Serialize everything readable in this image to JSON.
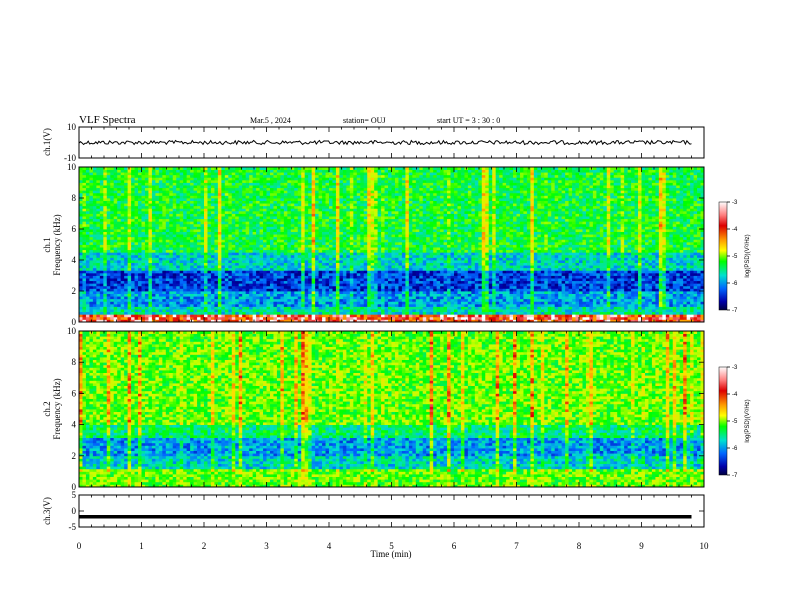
{
  "header": {
    "title": "VLF Spectra",
    "date": "Mar.5 , 2024",
    "station": "station= OUJ",
    "start": "start UT = 3 : 30 : 0"
  },
  "chart_data": {
    "type": "heatmap",
    "xlabel": "Time (min)",
    "xlim": [
      0,
      10
    ],
    "x_ticks": [
      "0",
      "1",
      "2",
      "3",
      "4",
      "5",
      "6",
      "7",
      "8",
      "9",
      "10"
    ],
    "panels": [
      {
        "id": "ch1v",
        "type": "line",
        "ylabel": "ch.1(V)",
        "ylim": [
          -10,
          10
        ],
        "y_ticks": [
          "10",
          "-10"
        ],
        "level": 0
      },
      {
        "id": "ch1spec",
        "type": "heatmap",
        "ylabel_top": "ch.1",
        "ylabel": "Frequency (kHz)",
        "ylim": [
          0,
          10
        ],
        "y_ticks": [
          "0",
          "2",
          "4",
          "6",
          "8",
          "10"
        ],
        "colorbar": {
          "label": "log(PSD)(V²/Hz)",
          "range": [
            -7,
            -3
          ],
          "ticks": [
            "-3",
            "-4",
            "-5",
            "-6",
            "-7"
          ]
        }
      },
      {
        "id": "ch2spec",
        "type": "heatmap",
        "ylabel_top": "ch.2",
        "ylabel": "Frequency (kHz)",
        "ylim": [
          0,
          10
        ],
        "y_ticks": [
          "0",
          "2",
          "4",
          "6",
          "8",
          "10"
        ],
        "colorbar": {
          "label": "log(PSD)(V²/Hz)",
          "range": [
            -7,
            -3
          ],
          "ticks": [
            "-3",
            "-4",
            "-5",
            "-6",
            "-7"
          ]
        }
      },
      {
        "id": "ch3v",
        "type": "line",
        "ylabel": "ch.3(V)",
        "ylim": [
          -5,
          5
        ],
        "y_ticks": [
          "5",
          "0",
          "-5"
        ],
        "level": -1.8
      }
    ],
    "colors": {
      "high": "#cc0000",
      "mid": "#00ff00",
      "low": "#000080"
    },
    "grid": false
  }
}
